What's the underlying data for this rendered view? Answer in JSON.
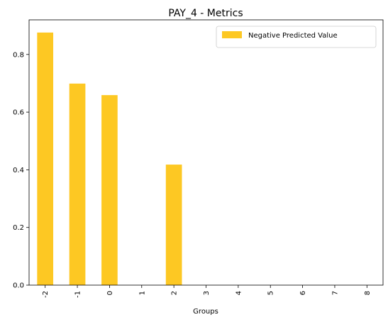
{
  "chart_data": {
    "type": "bar",
    "title": "PAY_4 - Metrics",
    "xlabel": "Groups",
    "ylabel": "",
    "categories": [
      "-2",
      "-1",
      "0",
      "1",
      "2",
      "3",
      "4",
      "5",
      "6",
      "7",
      "8"
    ],
    "series": [
      {
        "name": "Negative Predicted Value",
        "values": [
          0.876,
          0.699,
          0.659,
          0.0,
          0.418,
          0.0,
          0.0,
          0.0,
          0.0,
          0.0,
          0.0
        ]
      }
    ],
    "ylim": [
      0,
      0.92
    ],
    "yticks": [
      "0.0",
      "0.2",
      "0.4",
      "0.6",
      "0.8"
    ],
    "ytick_values": [
      0,
      0.2,
      0.4,
      0.6,
      0.8
    ],
    "legend_position": "upper right",
    "bar_color": "#fdc823",
    "grid": false
  }
}
